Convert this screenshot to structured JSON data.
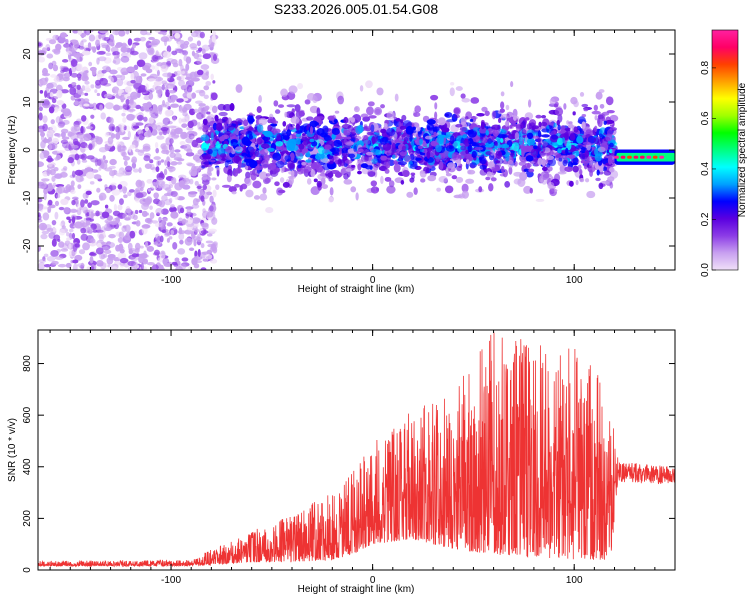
{
  "title": "S233.2026.005.01.54.G08",
  "chart_data": [
    {
      "type": "heatmap",
      "xlabel": "Height of straight line (km)",
      "ylabel": "Frequency (Hz)",
      "xlim": [
        -166,
        150
      ],
      "ylim": [
        -25,
        25
      ],
      "xticks": [
        -100,
        0,
        100
      ],
      "xtick_labels": [
        "-100",
        "0",
        "100"
      ],
      "yticks": [
        -20,
        -10,
        0,
        10,
        20
      ],
      "ytick_labels": [
        "-20",
        "-10",
        "0",
        "10",
        "20"
      ],
      "colorbar": {
        "label": "Normalized spectral amplitude",
        "range": [
          0,
          0.95
        ],
        "ticks": [
          0,
          0.2,
          0.4,
          0.6,
          0.8
        ],
        "tick_labels": [
          "0.0",
          "0.2",
          "0.4",
          "0.6",
          "0.8"
        ],
        "colormap": [
          "#f0e0f8",
          "#c8a0f0",
          "#8c3ce6",
          "#5a00e0",
          "#0000ff",
          "#00a0ff",
          "#00ffff",
          "#00ff80",
          "#00ff00",
          "#a0ff00",
          "#ffff00",
          "#ffa000",
          "#ff4000",
          "#ff0066",
          "#ff20a0"
        ]
      },
      "regions": [
        {
          "x": [
            -166,
            -84
          ],
          "freq_spread": 25,
          "amplitude": 0.06,
          "description": "broad noise"
        },
        {
          "x": [
            -84,
            120
          ],
          "freq_spread": 9,
          "amplitude": 0.3
        },
        {
          "x": [
            120,
            150
          ],
          "freq_center": -1.5,
          "amplitude": 0.9
        }
      ],
      "grid": false
    },
    {
      "type": "line",
      "xlabel": "Height of straight line (km)",
      "ylabel": "SNR (10 * v/v)",
      "xlim": [
        -166,
        150
      ],
      "ylim": [
        0,
        930
      ],
      "xticks": [
        -100,
        0,
        100
      ],
      "xtick_labels": [
        "-100",
        "0",
        "100"
      ],
      "yticks": [
        0,
        200,
        400,
        600,
        800
      ],
      "ytick_labels": [
        "0",
        "200",
        "400",
        "600",
        "800"
      ],
      "color": "#ee3333",
      "envelope": [
        {
          "x": -166,
          "base": 15,
          "peak": 35
        },
        {
          "x": -90,
          "base": 15,
          "peak": 40
        },
        {
          "x": -80,
          "base": 20,
          "peak": 80
        },
        {
          "x": -60,
          "base": 30,
          "peak": 150
        },
        {
          "x": -40,
          "base": 30,
          "peak": 220
        },
        {
          "x": -20,
          "base": 40,
          "peak": 300
        },
        {
          "x": -10,
          "base": 60,
          "peak": 380
        },
        {
          "x": 0,
          "base": 100,
          "peak": 500
        },
        {
          "x": 20,
          "base": 120,
          "peak": 620
        },
        {
          "x": 40,
          "base": 80,
          "peak": 700
        },
        {
          "x": 60,
          "base": 60,
          "peak": 930
        },
        {
          "x": 80,
          "base": 50,
          "peak": 880
        },
        {
          "x": 100,
          "base": 40,
          "peak": 860
        },
        {
          "x": 118,
          "base": 40,
          "peak": 720
        },
        {
          "x": 122,
          "base": 340,
          "peak": 420
        },
        {
          "x": 150,
          "base": 330,
          "peak": 400
        }
      ],
      "grid": false
    }
  ]
}
